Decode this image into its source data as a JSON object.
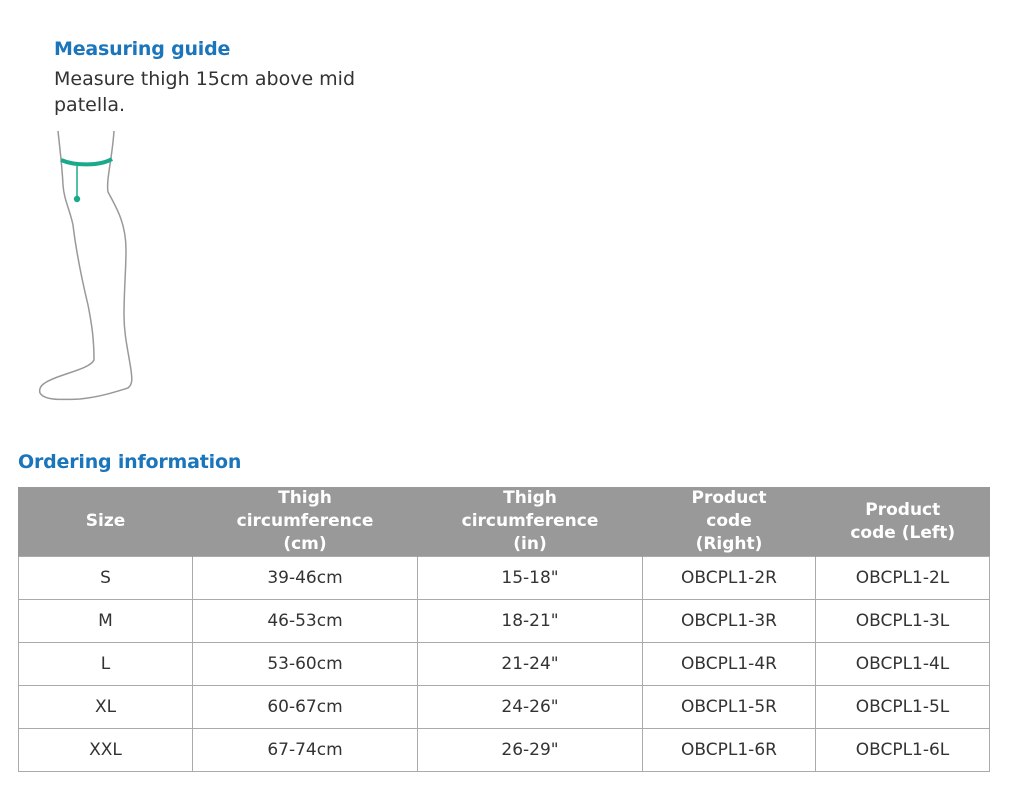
{
  "measuring_guide": {
    "title": "Measuring guide",
    "description": "Measure thigh 15cm above mid patella.",
    "accent_color": "#1aa98a"
  },
  "ordering": {
    "title": "Ordering information",
    "headers": [
      "Size",
      "Thigh circumference (cm)",
      "Thigh circumference (in)",
      "Product code (Right)",
      "Product code (Left)"
    ],
    "rows": [
      [
        "S",
        "39-46cm",
        "15-18\"",
        "OBCPL1-2R",
        "OBCPL1-2L"
      ],
      [
        "M",
        "46-53cm",
        "18-21\"",
        "OBCPL1-3R",
        "OBCPL1-3L"
      ],
      [
        "L",
        "53-60cm",
        "21-24\"",
        "OBCPL1-4R",
        "OBCPL1-4L"
      ],
      [
        "XL",
        "60-67cm",
        "24-26\"",
        "OBCPL1-5R",
        "OBCPL1-5L"
      ],
      [
        "XXL",
        "67-74cm",
        "26-29\"",
        "OBCPL1-6R",
        "OBCPL1-6L"
      ]
    ]
  },
  "colors": {
    "heading": "#1b75bb",
    "table_header": "#999999"
  }
}
